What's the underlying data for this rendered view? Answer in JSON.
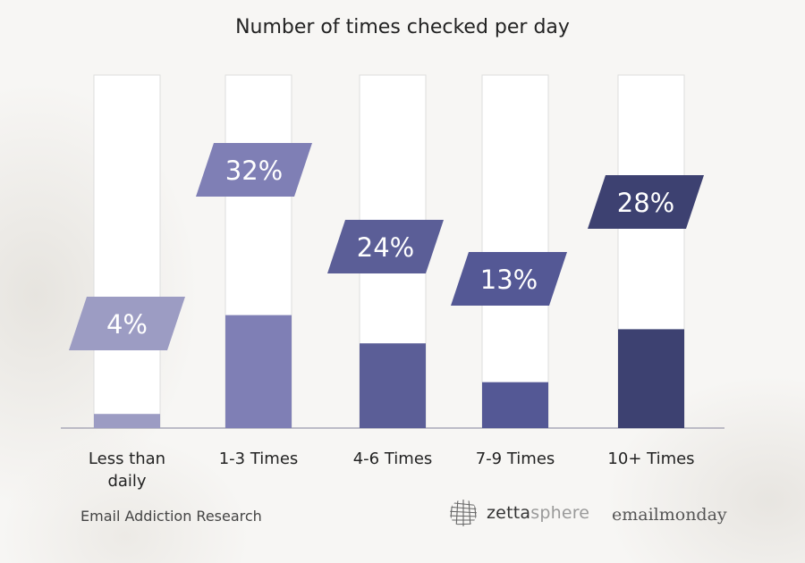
{
  "chart_data": {
    "type": "bar",
    "title": "Number of times checked per day",
    "categories": [
      "Less than daily",
      "1-3 Times",
      "4-6 Times",
      "7-9 Times",
      "10+ Times"
    ],
    "category_lines": [
      [
        "Less than",
        "daily"
      ],
      [
        "1-3 Times"
      ],
      [
        "4-6 Times"
      ],
      [
        "7-9 Times"
      ],
      [
        "10+ Times"
      ]
    ],
    "values": [
      4,
      32,
      24,
      13,
      28
    ],
    "data_labels": [
      "4%",
      "32%",
      "24%",
      "13%",
      "28%"
    ],
    "unit": "%",
    "ylim": [
      0,
      100
    ],
    "grid": false,
    "legend": "none",
    "xlabel": "",
    "ylabel": "",
    "colors": [
      "#9c9cc3",
      "#7f7fb5",
      "#5b5e97",
      "#545895",
      "#3d4171"
    ],
    "track_color": "#ffffff",
    "track_border": "#dddddd",
    "baseline_color": "#a9a9b8"
  },
  "footer": {
    "source": "Email Addiction Research",
    "logo_zetta_bold": "zetta",
    "logo_zetta_light": "sphere",
    "logo_email": "emailmonday"
  }
}
